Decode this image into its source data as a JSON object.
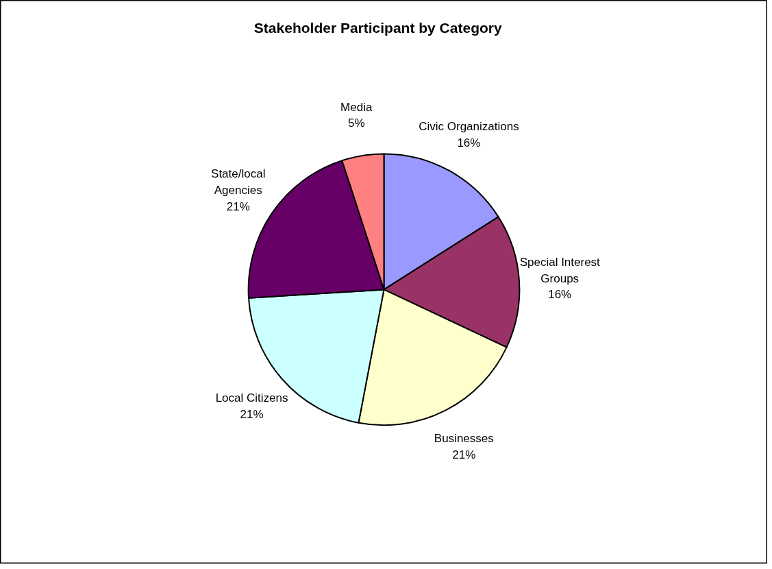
{
  "chart_data": {
    "type": "pie",
    "title": "Stakeholder  Participant  by  Category",
    "categories": [
      "Civic Organizations",
      "Special Interest Groups",
      "Businesses",
      "Local Citizens",
      "State/local Agencies",
      "Media"
    ],
    "values": [
      16,
      16,
      21,
      21,
      21,
      5
    ],
    "value_labels": [
      "16%",
      "16%",
      "21%",
      "21%",
      "21%",
      "5%"
    ],
    "colors": [
      "#9999ff",
      "#993366",
      "#ffffcc",
      "#ccffff",
      "#660066",
      "#ff8080"
    ]
  }
}
